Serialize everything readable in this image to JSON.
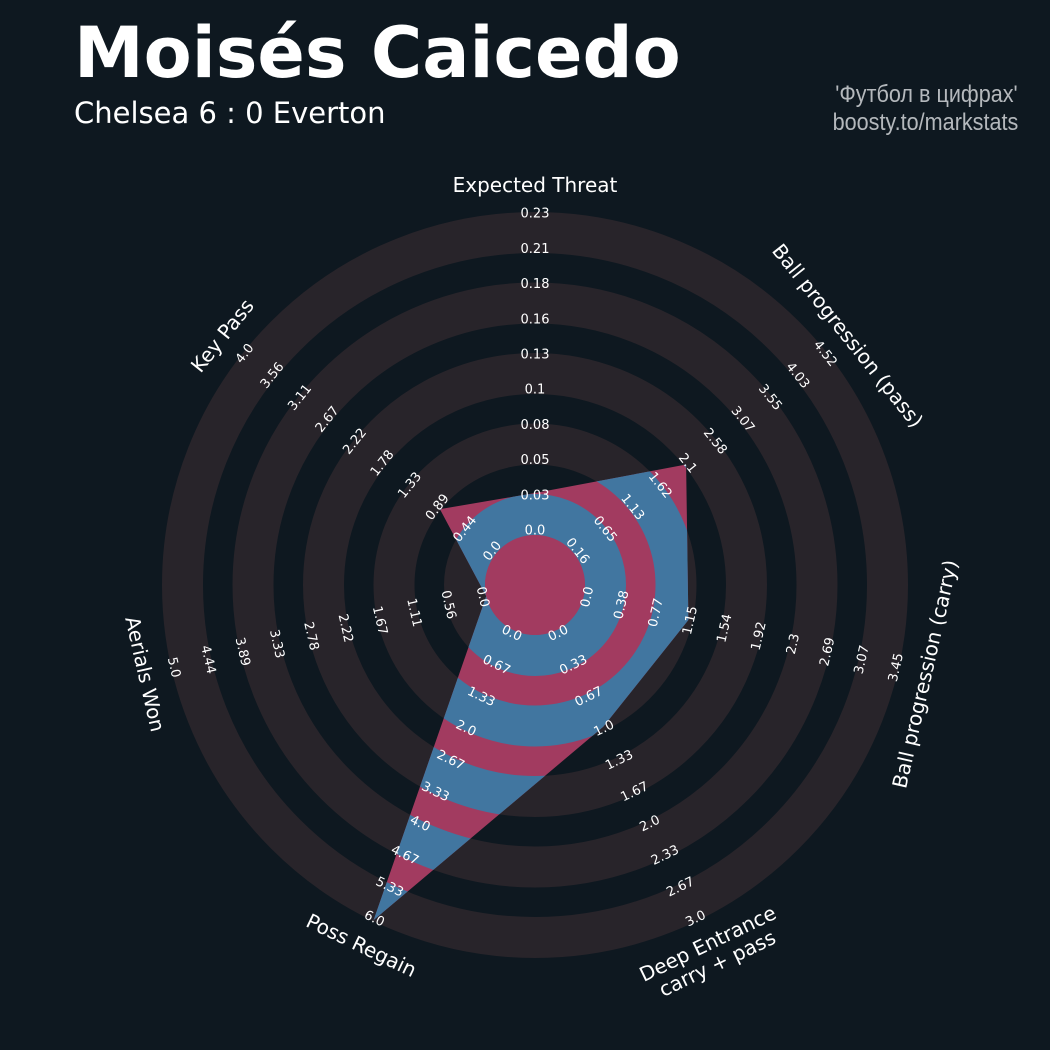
{
  "header": {
    "title": "Moisés Caicedo",
    "subtitle": "Chelsea 6 : 0 Everton",
    "credit_line1": "'Футбол в цифрах'",
    "credit_line2": "boosty.to/markstats"
  },
  "colors": {
    "background": "#0e1820",
    "ring_shade": "#28242a",
    "band_a": "#a23b60",
    "band_b": "#4176a0",
    "text": "#ffffff"
  },
  "chart_data": {
    "type": "radar",
    "params": [
      {
        "label": [
          "Expected Threat"
        ],
        "min": 0.0,
        "max": 0.23,
        "value": 0.03,
        "ticks": [
          "0.0",
          "0.03",
          "0.05",
          "0.08",
          "0.1",
          "0.13",
          "0.16",
          "0.18",
          "0.21",
          "0.23"
        ]
      },
      {
        "label": [
          "Ball progression (pass)"
        ],
        "min": 0.16,
        "max": 4.52,
        "value": 2.1,
        "ticks": [
          "0.16",
          "0.65",
          "1.13",
          "1.62",
          "2.1",
          "2.58",
          "3.07",
          "3.55",
          "4.03",
          "4.52"
        ]
      },
      {
        "label": [
          "Ball progression (carry)"
        ],
        "min": 0.0,
        "max": 3.45,
        "value": 1.15,
        "ticks": [
          "0.0",
          "0.38",
          "0.77",
          "1.15",
          "1.54",
          "1.92",
          "2.3",
          "2.69",
          "3.07",
          "3.45"
        ]
      },
      {
        "label": [
          "Deep Entrance",
          "carry + pass"
        ],
        "min": 0.0,
        "max": 3.0,
        "value": 1.0,
        "ticks": [
          "0.0",
          "0.33",
          "0.67",
          "1.0",
          "1.33",
          "1.67",
          "2.0",
          "2.33",
          "2.67",
          "3.0"
        ]
      },
      {
        "label": [
          "Poss Regain"
        ],
        "min": 0.0,
        "max": 6.0,
        "value": 6.0,
        "ticks": [
          "0.0",
          "0.67",
          "1.33",
          "2.0",
          "2.67",
          "3.33",
          "4.0",
          "4.67",
          "5.33",
          "6.0"
        ]
      },
      {
        "label": [
          "Aerials Won"
        ],
        "min": 0.0,
        "max": 5.0,
        "value": 0.0,
        "ticks": [
          "0.0",
          "0.56",
          "1.11",
          "1.67",
          "2.22",
          "2.78",
          "3.33",
          "3.89",
          "4.44",
          "5.0"
        ]
      },
      {
        "label": [
          "Key Pass"
        ],
        "min": 0.0,
        "max": 4.0,
        "value": 0.89,
        "ticks": [
          "0.0",
          "0.44",
          "0.89",
          "1.33",
          "1.78",
          "2.22",
          "2.67",
          "3.11",
          "3.56",
          "4.0"
        ]
      }
    ]
  }
}
